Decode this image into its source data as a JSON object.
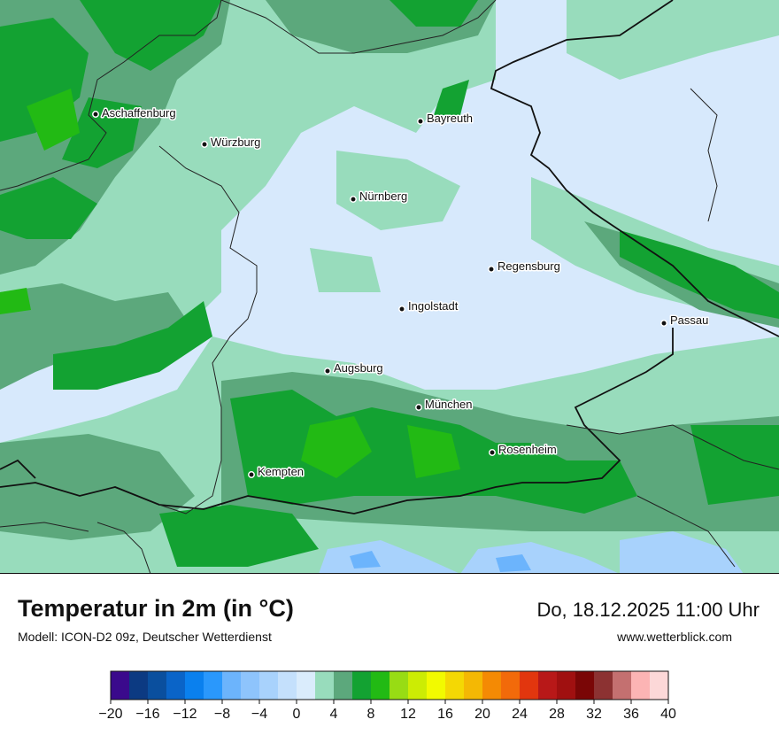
{
  "header": {
    "title": "Temperatur in 2m (in °C)",
    "model": "Modell: ICON-D2 09z, Deutscher Wetterdienst",
    "datetime": "Do, 18.12.2025 11:00 Uhr",
    "website": "www.wetterblick.com"
  },
  "map": {
    "background_color": "#d7e9fc",
    "border_color": "#111111",
    "cities": [
      {
        "name": "Aschaffenburg"
      },
      {
        "name": "Würzburg"
      },
      {
        "name": "Bayreuth"
      },
      {
        "name": "Nürnberg"
      },
      {
        "name": "Regensburg"
      },
      {
        "name": "Ingolstadt"
      },
      {
        "name": "Passau"
      },
      {
        "name": "Augsburg"
      },
      {
        "name": "München"
      },
      {
        "name": "Rosenheim"
      },
      {
        "name": "Kempten"
      }
    ]
  },
  "legend": {
    "colors": [
      "#3a0a8c",
      "#0c3a82",
      "#0a4f9e",
      "#0a64c8",
      "#0a80ee",
      "#2a98fc",
      "#6cb4fc",
      "#8ec4fc",
      "#a8d2fc",
      "#c4e0fc",
      "#daecfc",
      "#98dcbc",
      "#5ca87c",
      "#13a232",
      "#22ba14",
      "#98dc14",
      "#ccec04",
      "#f2fa00",
      "#f4d804",
      "#f4b804",
      "#f48a04",
      "#f26a0a",
      "#e2360e",
      "#b81818",
      "#a01010",
      "#7a0606",
      "#8c3232",
      "#c47070",
      "#fcb4b4",
      "#fcd8d8"
    ],
    "ticks": [
      "−20",
      "−16",
      "−12",
      "−8",
      "−4",
      "0",
      "4",
      "8",
      "12",
      "16",
      "20",
      "24",
      "28",
      "32",
      "36",
      "40"
    ]
  }
}
